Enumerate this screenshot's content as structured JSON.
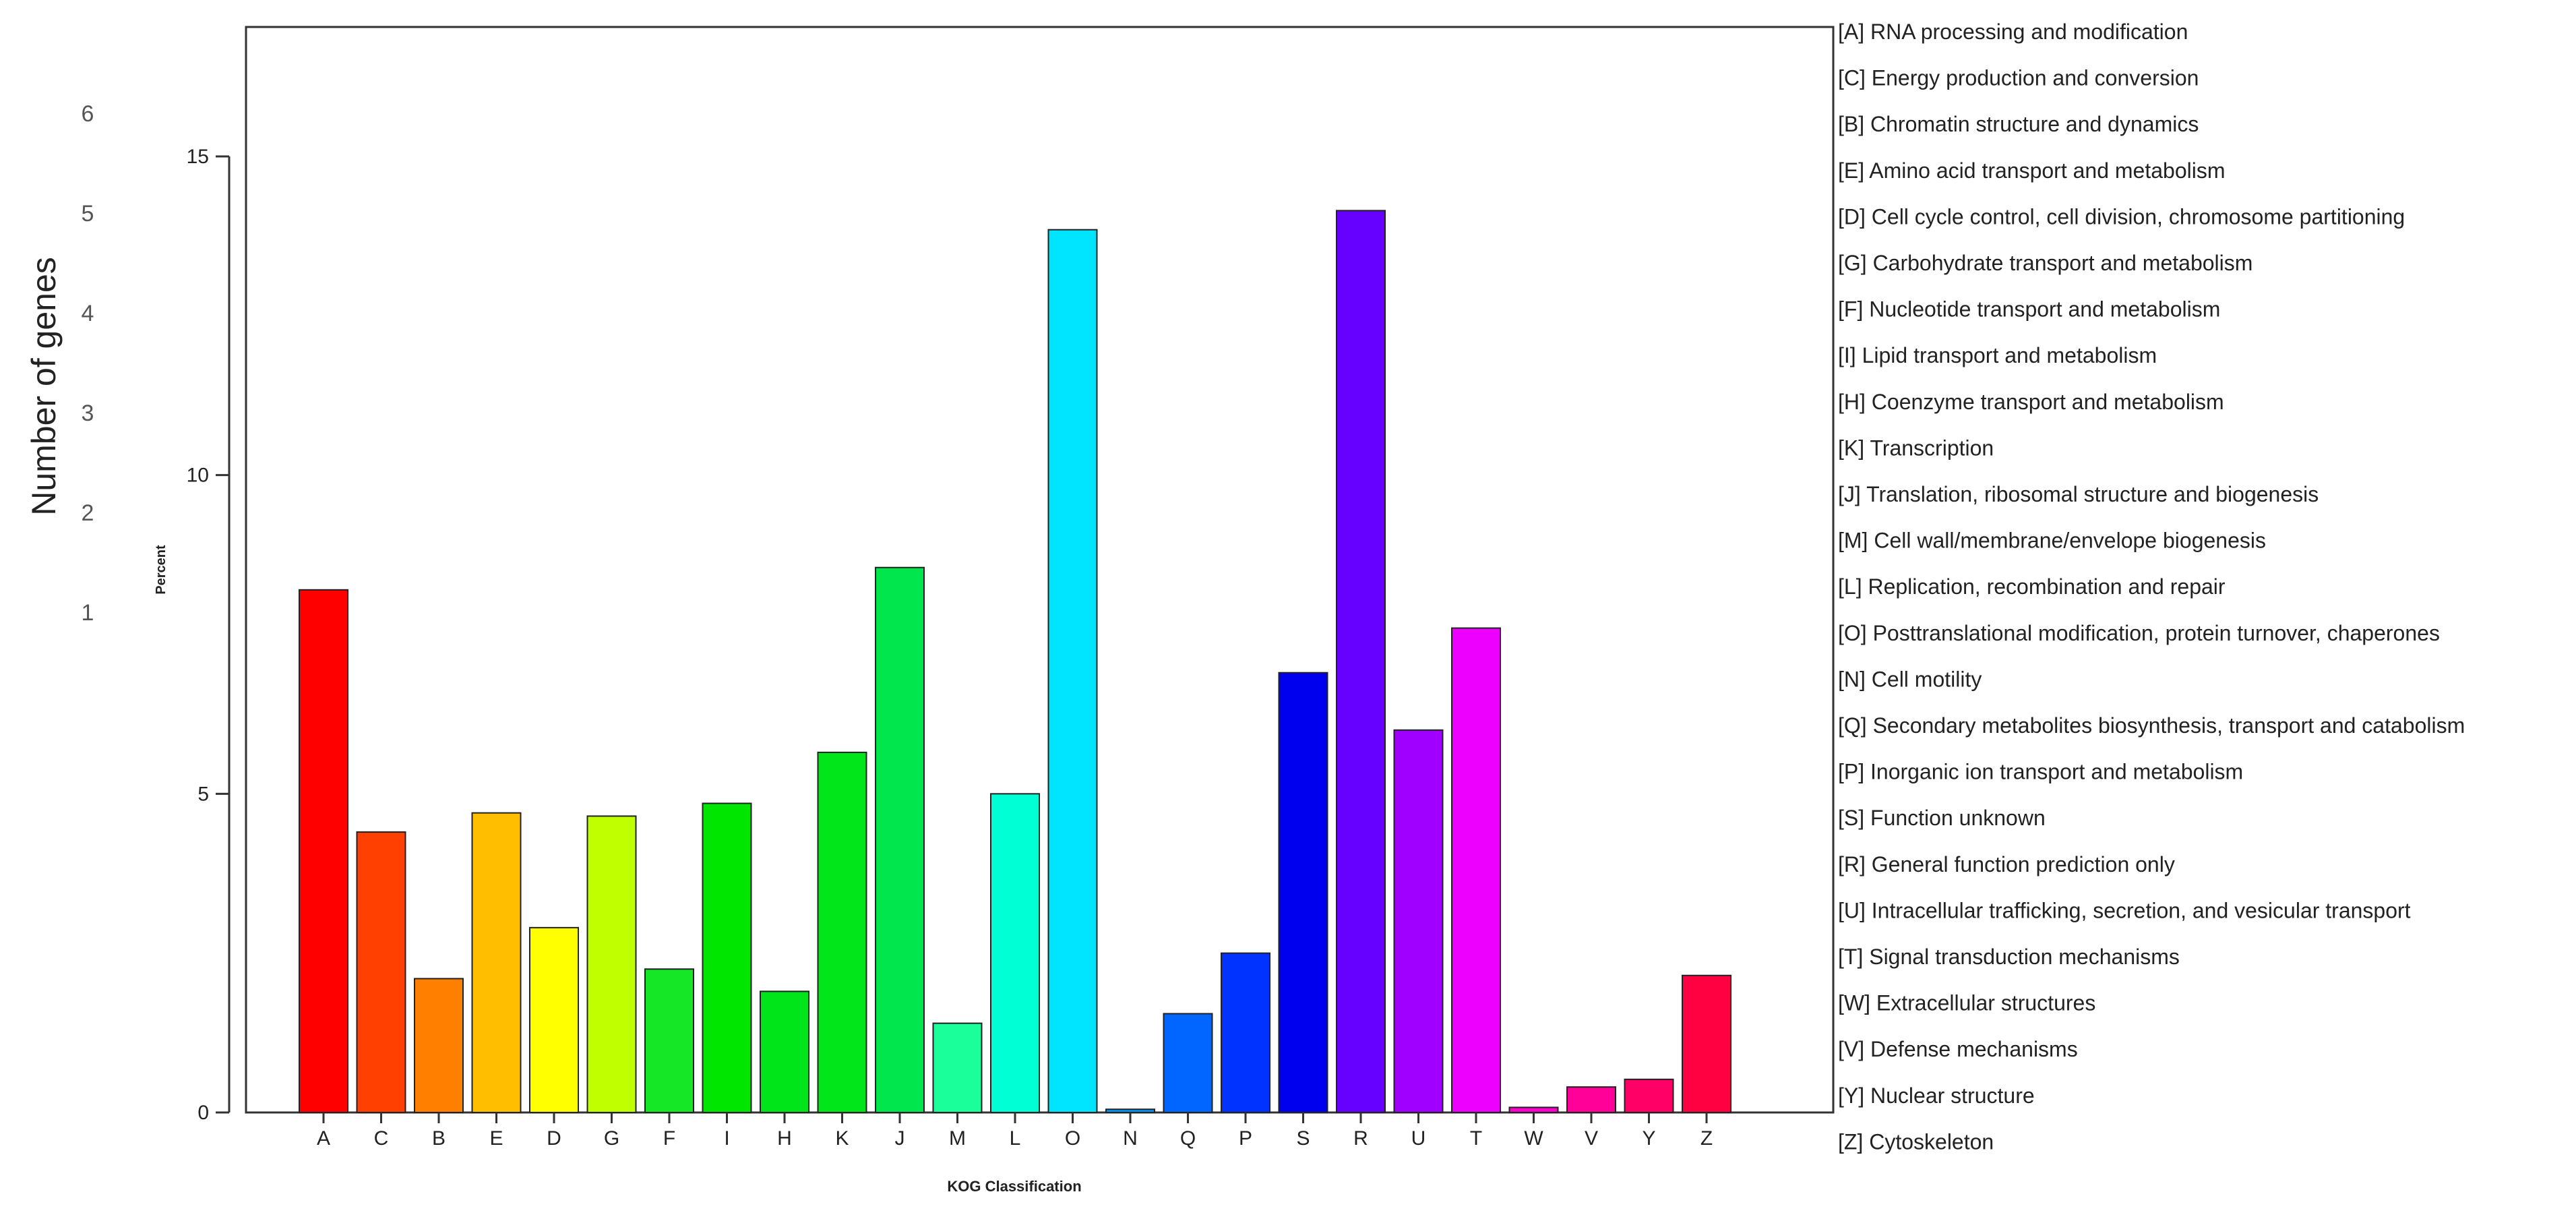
{
  "chart_data": {
    "type": "bar",
    "title": "",
    "xlabel": "KOG Classification",
    "ylabel": "Percent",
    "ylim": [
      0,
      17
    ],
    "yticks": [
      0,
      5,
      10,
      15
    ],
    "categories": [
      "A",
      "C",
      "B",
      "E",
      "D",
      "G",
      "F",
      "I",
      "H",
      "K",
      "J",
      "M",
      "L",
      "O",
      "N",
      "Q",
      "P",
      "S",
      "R",
      "U",
      "T",
      "W",
      "V",
      "Y",
      "Z"
    ],
    "values": [
      8.2,
      4.4,
      2.1,
      4.7,
      2.9,
      4.65,
      2.25,
      4.85,
      1.9,
      5.65,
      8.55,
      1.4,
      5.0,
      13.85,
      0.05,
      1.55,
      2.5,
      6.9,
      14.15,
      6.0,
      7.6,
      0.08,
      0.4,
      0.52,
      2.15
    ],
    "colors": [
      "#ff0000",
      "#ff4000",
      "#ff8000",
      "#ffbf00",
      "#ffff00",
      "#bfff00",
      "#15e626",
      "#00e600",
      "#00e51a",
      "#00e61a",
      "#00e64c",
      "#1aff99",
      "#00ffd5",
      "#00e5ff",
      "#0095ff",
      "#0066ff",
      "#0033ff",
      "#0000ee",
      "#6600ff",
      "#a000ff",
      "#ee00ff",
      "#ff00cc",
      "#ff0099",
      "#ff0066",
      "#ff0040"
    ],
    "grid": false,
    "secondary_axis": {
      "label": "Number of genes",
      "ticks": [
        "1",
        "2",
        "3",
        "4",
        "5",
        "6"
      ]
    },
    "legend": {
      "placement": "right",
      "entries": [
        "[A] RNA processing and modification",
        "[C] Energy production and conversion",
        "[B] Chromatin structure and dynamics",
        "[E] Amino acid transport and metabolism",
        "[D] Cell cycle control, cell division, chromosome partitioning",
        "[G] Carbohydrate transport and metabolism",
        "[F] Nucleotide transport and metabolism",
        "[I] Lipid transport and metabolism",
        "[H] Coenzyme transport and metabolism",
        "[K] Transcription",
        "[J] Translation, ribosomal structure and biogenesis",
        "[M] Cell wall/membrane/envelope biogenesis",
        "[L] Replication, recombination and repair",
        "[O] Posttranslational modification, protein turnover, chaperones",
        "[N] Cell motility",
        "[Q] Secondary metabolites biosynthesis, transport and catabolism",
        "[P] Inorganic ion transport and metabolism",
        "[S] Function unknown",
        "[R] General function prediction only",
        "[U] Intracellular trafficking, secretion, and vesicular transport",
        "[T] Signal transduction mechanisms",
        "[W] Extracellular structures",
        "[V] Defense mechanisms",
        "[Y] Nuclear structure",
        "[Z] Cytoskeleton"
      ]
    }
  }
}
